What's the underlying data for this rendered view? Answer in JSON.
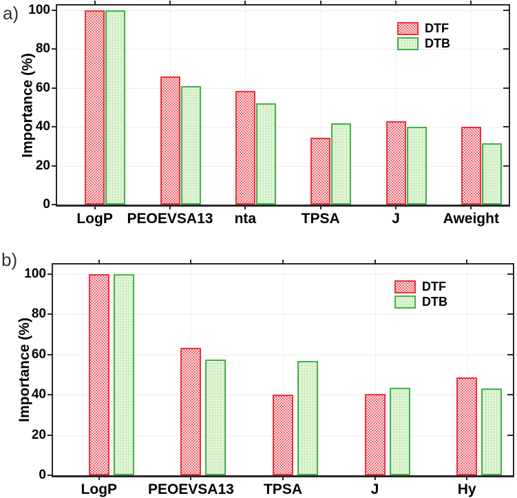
{
  "figure_title": "",
  "colors": {
    "dtf_border": "#e8323c",
    "dtf_check_dark": "#ec6d76",
    "dtf_check_light": "#fbdfe1",
    "dtb_border": "#43b04a",
    "dtb_fill": "#e4f6d9",
    "dtb_mesh": "#c9ebbf",
    "gridline_h": "#ececec",
    "gridline_v": "#f2f2f2",
    "axis": "#262626"
  },
  "chart_data": [
    {
      "type": "bar",
      "panel_label": "a)",
      "ylabel": "Importance (%)",
      "xlabel": "",
      "yticks": [
        0,
        20,
        40,
        60,
        80,
        100
      ],
      "ylim": [
        0,
        102.5
      ],
      "grid": "faint horizontal and vertical gridlines",
      "legend_position": "top-right-inside",
      "categories": [
        "LogP",
        "PEOEVSA13",
        "nta",
        "TPSA",
        "J",
        "Aweight"
      ],
      "series": [
        {
          "name": "DTF",
          "values": [
            100,
            66,
            58.5,
            34.5,
            43,
            40
          ]
        },
        {
          "name": "DTB",
          "values": [
            100,
            61,
            52,
            42,
            40,
            31.5
          ]
        }
      ]
    },
    {
      "type": "bar",
      "panel_label": "b)",
      "ylabel": "Importance (%)",
      "xlabel": "",
      "yticks": [
        0,
        20,
        40,
        60,
        80,
        100
      ],
      "ylim": [
        0,
        104.8
      ],
      "grid": "faint horizontal and vertical gridlines",
      "legend_position": "top-right-inside",
      "categories": [
        "LogP",
        "PEOEVSA13",
        "TPSA",
        "J",
        "Hy"
      ],
      "series": [
        {
          "name": "DTF",
          "values": [
            100,
            63.5,
            40,
            40.5,
            48.5
          ]
        },
        {
          "name": "DTB",
          "values": [
            100,
            57.5,
            57,
            43.5,
            43
          ]
        }
      ]
    }
  ]
}
